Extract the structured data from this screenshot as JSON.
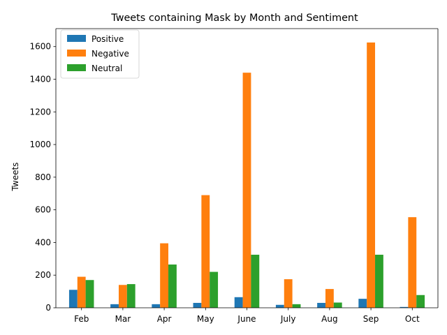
{
  "chart_data": {
    "type": "bar",
    "title": "Tweets containing Mask by Month and Sentiment",
    "xlabel": "",
    "ylabel": "Tweets",
    "categories": [
      "Feb",
      "Mar",
      "Apr",
      "May",
      "June",
      "July",
      "Aug",
      "Sep",
      "Oct"
    ],
    "series": [
      {
        "name": "Positive",
        "color": "#1f77b4",
        "values": [
          110,
          22,
          22,
          30,
          65,
          18,
          30,
          55,
          5
        ]
      },
      {
        "name": "Negative",
        "color": "#ff7f0e",
        "values": [
          190,
          140,
          395,
          690,
          1440,
          175,
          115,
          1625,
          555
        ]
      },
      {
        "name": "Neutral",
        "color": "#2ca02c",
        "values": [
          170,
          145,
          265,
          220,
          325,
          22,
          32,
          325,
          78
        ]
      }
    ],
    "ylim": [
      0,
      1710
    ],
    "yticks": [
      0,
      200,
      400,
      600,
      800,
      1000,
      1200,
      1400,
      1600
    ],
    "grid": false,
    "legend_position": "top-left"
  }
}
